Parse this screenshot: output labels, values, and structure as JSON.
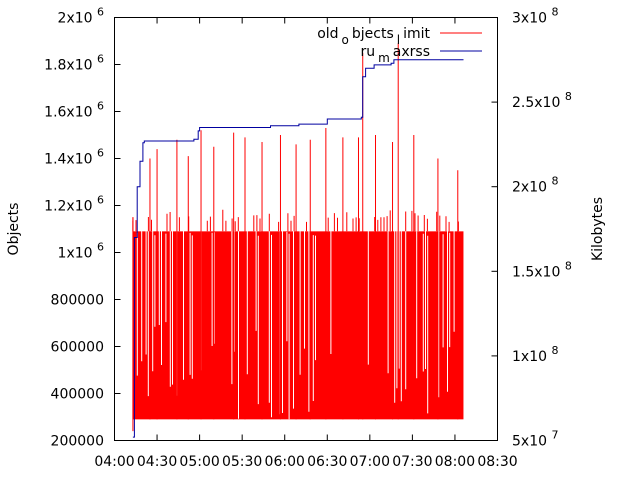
{
  "chart_data": {
    "type": "line",
    "ylabel": "Objects",
    "y2label": "Kilobytes",
    "xlim": [
      "04:00",
      "08:30"
    ],
    "ylim": [
      200000,
      2000000
    ],
    "y2lim": [
      50000000,
      300000000
    ],
    "x_ticks": [
      "04:00",
      "04:30",
      "05:00",
      "05:30",
      "06:00",
      "06:30",
      "07:00",
      "07:30",
      "08:00",
      "08:30"
    ],
    "y_ticks": [
      {
        "value": 200000,
        "label": "200000"
      },
      {
        "value": 400000,
        "label": "400000"
      },
      {
        "value": 600000,
        "label": "600000"
      },
      {
        "value": 800000,
        "label": "800000"
      },
      {
        "value": 1000000,
        "label": "1x10",
        "exp": "6"
      },
      {
        "value": 1200000,
        "label": "1.2x10",
        "exp": "6"
      },
      {
        "value": 1400000,
        "label": "1.4x10",
        "exp": "6"
      },
      {
        "value": 1600000,
        "label": "1.6x10",
        "exp": "6"
      },
      {
        "value": 1800000,
        "label": "1.8x10",
        "exp": "6"
      },
      {
        "value": 2000000,
        "label": "2x10",
        "exp": "6"
      }
    ],
    "y2_ticks": [
      {
        "value": 50000000,
        "label": "5x10",
        "exp": "7"
      },
      {
        "value": 100000000,
        "label": "1x10",
        "exp": "8"
      },
      {
        "value": 150000000,
        "label": "1.5x10",
        "exp": "8"
      },
      {
        "value": 200000000,
        "label": "2x10",
        "exp": "8"
      },
      {
        "value": 250000000,
        "label": "2.5x10",
        "exp": "8"
      },
      {
        "value": 300000000,
        "label": "3x10",
        "exp": "8"
      }
    ],
    "grid": false,
    "legend_position": "top-right",
    "legend": [
      {
        "label_parts": [
          "old",
          "o",
          "bjects",
          "l",
          "imit"
        ],
        "color": "#ff0000"
      },
      {
        "label_parts": [
          "ru",
          "m",
          "axrss"
        ],
        "color": "#0000a0"
      }
    ],
    "series": [
      {
        "name": "old_objects_limit",
        "axis": "y",
        "color": "#ff0000",
        "style": "oscillating",
        "x_range": [
          "04:13",
          "08:06"
        ],
        "low": 290000,
        "high": 1090000,
        "peaks": [
          {
            "x": "04:13",
            "y": 1150000
          },
          {
            "x": "04:25",
            "y": 1400000
          },
          {
            "x": "04:30",
            "y": 1440000
          },
          {
            "x": "04:44",
            "y": 1480000
          },
          {
            "x": "04:52",
            "y": 1410000
          },
          {
            "x": "05:01",
            "y": 1520000
          },
          {
            "x": "05:10",
            "y": 1450000
          },
          {
            "x": "05:24",
            "y": 1510000
          },
          {
            "x": "05:32",
            "y": 1490000
          },
          {
            "x": "05:44",
            "y": 1470000
          },
          {
            "x": "05:57",
            "y": 1500000
          },
          {
            "x": "06:08",
            "y": 1460000
          },
          {
            "x": "06:18",
            "y": 1480000
          },
          {
            "x": "06:29",
            "y": 1530000
          },
          {
            "x": "06:41",
            "y": 1490000
          },
          {
            "x": "06:52",
            "y": 1490000
          },
          {
            "x": "06:55",
            "y": 1850000
          },
          {
            "x": "07:04",
            "y": 1500000
          },
          {
            "x": "07:16",
            "y": 1470000
          },
          {
            "x": "07:20",
            "y": 1890000
          },
          {
            "x": "07:31",
            "y": 1500000
          },
          {
            "x": "07:48",
            "y": 1400000
          },
          {
            "x": "08:02",
            "y": 1350000
          }
        ]
      },
      {
        "name": "ru_maxrss",
        "axis": "y2",
        "color": "#0000a0",
        "style": "step",
        "points": [
          {
            "x": "04:13",
            "y": 52000000
          },
          {
            "x": "04:14",
            "y": 170000000
          },
          {
            "x": "04:16",
            "y": 200000000
          },
          {
            "x": "04:18",
            "y": 215000000
          },
          {
            "x": "04:20",
            "y": 226000000
          },
          {
            "x": "04:21",
            "y": 227000000
          },
          {
            "x": "04:56",
            "y": 228000000
          },
          {
            "x": "04:59",
            "y": 233000000
          },
          {
            "x": "05:00",
            "y": 235000000
          },
          {
            "x": "05:50",
            "y": 236000000
          },
          {
            "x": "06:10",
            "y": 237000000
          },
          {
            "x": "06:30",
            "y": 240000000
          },
          {
            "x": "06:54",
            "y": 241000000
          },
          {
            "x": "06:55",
            "y": 265000000
          },
          {
            "x": "06:57",
            "y": 270000000
          },
          {
            "x": "07:03",
            "y": 272000000
          },
          {
            "x": "07:15",
            "y": 273000000
          },
          {
            "x": "07:17",
            "y": 275000000
          },
          {
            "x": "08:06",
            "y": 275000000
          }
        ]
      }
    ]
  }
}
